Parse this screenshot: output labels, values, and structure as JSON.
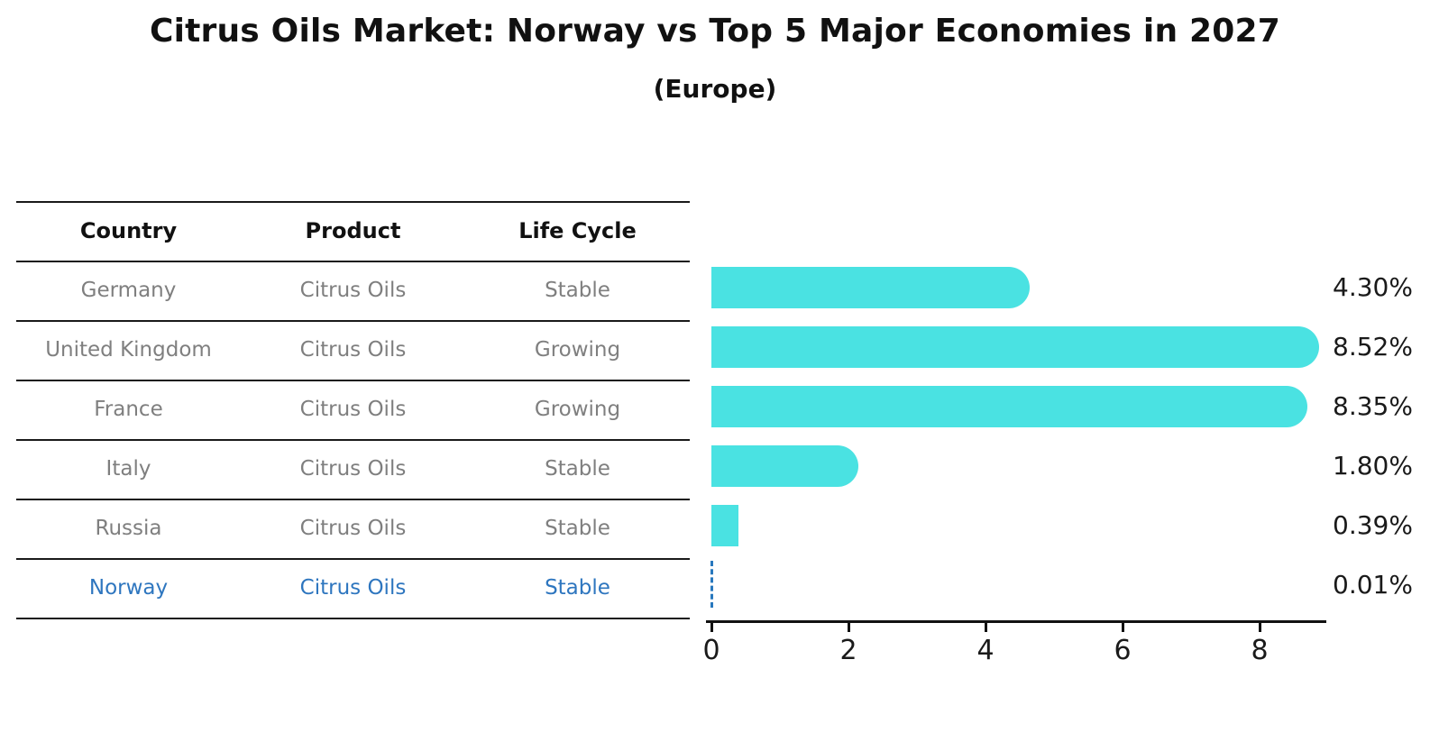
{
  "title": "Citrus Oils Market: Norway vs Top 5 Major Economies in 2027",
  "subtitle": "(Europe)",
  "table": {
    "headers": [
      "Country",
      "Product",
      "Life Cycle"
    ],
    "rows": [
      {
        "country": "Germany",
        "product": "Citrus Oils",
        "life_cycle": "Stable",
        "highlighted": false
      },
      {
        "country": "United Kingdom",
        "product": "Citrus Oils",
        "life_cycle": "Growing",
        "highlighted": false
      },
      {
        "country": "France",
        "product": "Citrus Oils",
        "life_cycle": "Growing",
        "highlighted": false
      },
      {
        "country": "Italy",
        "product": "Citrus Oils",
        "life_cycle": "Stable",
        "highlighted": false
      },
      {
        "country": "Russia",
        "product": "Citrus Oils",
        "life_cycle": "Stable",
        "highlighted": true
      }
    ],
    "highlight_row": {
      "country": "Norway",
      "product": "Citrus Oils",
      "life_cycle": "Stable"
    }
  },
  "chart_data": {
    "type": "bar",
    "orientation": "horizontal",
    "categories": [
      "Germany",
      "United Kingdom",
      "France",
      "Italy",
      "Russia",
      "Norway"
    ],
    "values": [
      4.3,
      8.52,
      8.35,
      1.8,
      0.39,
      0.01
    ],
    "value_labels": [
      "4.30%",
      "8.52%",
      "8.35%",
      "1.80%",
      "0.39%",
      "0.01%"
    ],
    "xlim": [
      0,
      9
    ],
    "xticks": [
      0,
      2,
      4,
      6,
      8
    ],
    "grid": false,
    "legend": false,
    "bar_color": "#4ae2e2",
    "highlight_color": "#2878be",
    "highlight_category": "Norway",
    "highlight_style": "dashed-line-marker"
  }
}
